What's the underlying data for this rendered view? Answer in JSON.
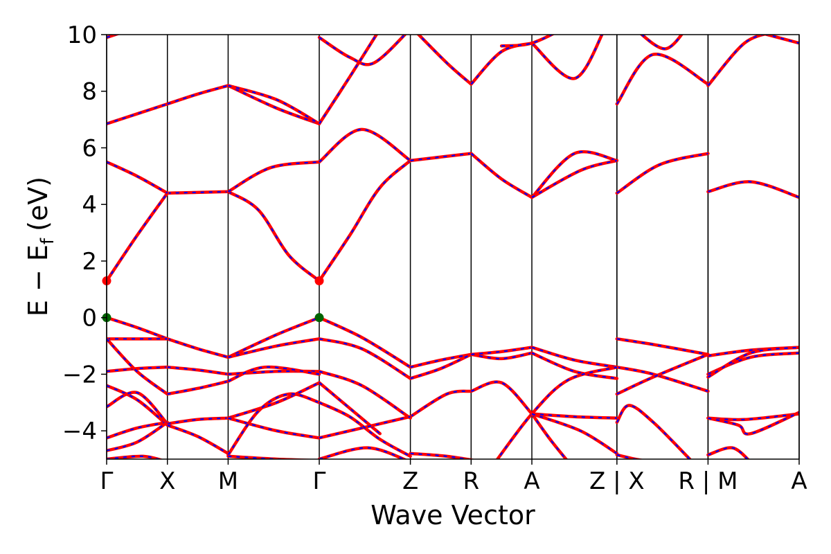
{
  "chart_data": {
    "type": "line",
    "title": "",
    "xlabel": "Wave Vector",
    "ylabel": "E − E",
    "ylabel_subscript": "f",
    "ylabel_unit": "(eV)",
    "ylim": [
      -5,
      10
    ],
    "yticks": [
      -4,
      -2,
      0,
      2,
      4,
      6,
      8,
      10
    ],
    "ytick_labels": [
      "−4",
      "−2",
      "0",
      "2",
      "4",
      "6",
      "8",
      "10"
    ],
    "grid": false,
    "legend": "none",
    "kpath": {
      "positions": [
        0,
        1,
        2,
        3.5,
        5,
        6,
        7,
        8.4,
        8.4,
        9.9,
        9.9,
        11.4
      ],
      "tick_labels": [
        "Γ",
        "X",
        "M",
        "Γ",
        "Z",
        "R",
        "A",
        "Z | X",
        "R | M",
        "A"
      ],
      "tick_positions": [
        0,
        1,
        2,
        3.5,
        5,
        6,
        7,
        8.4,
        9.9,
        11.4
      ],
      "break_positions": [
        8.4,
        9.9
      ],
      "xlim": [
        0,
        11.4
      ]
    },
    "colors": {
      "dft": "#ff0000",
      "wannier": "#0000ff",
      "cbm": "#ff0000",
      "vbm": "#006400"
    },
    "series": [
      {
        "segments": [
          {
            "x": [
              0,
              0.5,
              1
            ],
            "y": [
              1.3,
              2.9,
              4.4
            ]
          },
          {
            "x": [
              1,
              2
            ],
            "y": [
              4.4,
              4.45
            ]
          },
          {
            "x": [
              2,
              2.5,
              3.0,
              3.5
            ],
            "y": [
              4.45,
              3.8,
              2.2,
              1.3
            ]
          },
          {
            "x": [
              3.5,
              4.0,
              4.5,
              5.0
            ],
            "y": [
              1.3,
              2.9,
              4.6,
              5.55
            ]
          }
        ]
      },
      {
        "segments": [
          {
            "x": [
              0,
              0.5,
              1
            ],
            "y": [
              5.5,
              5.0,
              4.4
            ]
          },
          {
            "x": [
              2,
              2.7,
              3.5
            ],
            "y": [
              4.45,
              5.3,
              5.5
            ]
          },
          {
            "x": [
              3.5,
              4.2,
              5.0
            ],
            "y": [
              5.5,
              6.65,
              5.55
            ]
          },
          {
            "x": [
              5,
              6
            ],
            "y": [
              5.55,
              5.8
            ]
          },
          {
            "x": [
              6,
              6.5,
              7
            ],
            "y": [
              5.8,
              4.9,
              4.25
            ]
          },
          {
            "x": [
              7,
              7.7,
              8.4
            ],
            "y": [
              4.25,
              5.8,
              5.55
            ]
          },
          {
            "x": [
              7,
              7.8,
              8.4
            ],
            "y": [
              4.25,
              5.2,
              5.55
            ]
          },
          {
            "x": [
              8.4,
              9.1,
              9.9
            ],
            "y": [
              4.4,
              5.4,
              5.8
            ]
          },
          {
            "x": [
              9.9,
              10.6,
              11.4
            ],
            "y": [
              4.45,
              4.8,
              4.25
            ]
          }
        ]
      },
      {
        "segments": [
          {
            "x": [
              0,
              0.5,
              1
            ],
            "y": [
              6.85,
              7.2,
              7.55
            ]
          },
          {
            "x": [
              1,
              1.5,
              2
            ],
            "y": [
              7.55,
              7.9,
              8.2
            ]
          },
          {
            "x": [
              2,
              2.8,
              3.5
            ],
            "y": [
              8.2,
              7.4,
              6.85
            ]
          },
          {
            "x": [
              2,
              2.8,
              3.5
            ],
            "y": [
              8.2,
              7.7,
              6.85
            ]
          },
          {
            "x": [
              3.5,
              4.0,
              4.5
            ],
            "y": [
              6.85,
              8.5,
              10.2
            ]
          },
          {
            "x": [
              5,
              5.6,
              6
            ],
            "y": [
              10.3,
              9.0,
              8.25
            ]
          },
          {
            "x": [
              6,
              6.5,
              7
            ],
            "y": [
              8.25,
              9.4,
              9.7
            ]
          },
          {
            "x": [
              7,
              7.7,
              8.2
            ],
            "y": [
              9.7,
              8.45,
              10.2
            ]
          },
          {
            "x": [
              8.4,
              9.0,
              9.9
            ],
            "y": [
              7.55,
              9.3,
              8.25
            ]
          },
          {
            "x": [
              9.9,
              10.5,
              11.0
            ],
            "y": [
              8.2,
              9.7,
              10.1
            ]
          }
        ]
      },
      {
        "segments": [
          {
            "x": [
              0,
              0.6,
              1
            ],
            "y": [
              9.9,
              10.3,
              10.4
            ]
          },
          {
            "x": [
              3.5,
              4.0,
              4.4,
              5.0
            ],
            "y": [
              9.9,
              9.2,
              9.0,
              10.2
            ]
          },
          {
            "x": [
              6.5,
              7.0,
              7.6
            ],
            "y": [
              9.6,
              9.7,
              10.3
            ]
          },
          {
            "x": [
              8.7,
              9.2,
              9.6
            ],
            "y": [
              10.2,
              9.5,
              10.4
            ]
          },
          {
            "x": [
              10.7,
              11.4
            ],
            "y": [
              10.1,
              9.7
            ]
          }
        ]
      },
      {
        "segments": [
          {
            "x": [
              0,
              0.5,
              1
            ],
            "y": [
              0,
              -0.35,
              -0.75
            ]
          },
          {
            "x": [
              1,
              1.5,
              2
            ],
            "y": [
              -0.75,
              -1.1,
              -1.4
            ]
          },
          {
            "x": [
              2,
              2.8,
              3.5
            ],
            "y": [
              -1.4,
              -0.6,
              0
            ]
          },
          {
            "x": [
              3.5,
              4.2,
              5.0
            ],
            "y": [
              0,
              -0.7,
              -1.75
            ]
          },
          {
            "x": [
              5,
              5.5,
              6
            ],
            "y": [
              -1.75,
              -1.5,
              -1.3
            ]
          },
          {
            "x": [
              6,
              6.5,
              7
            ],
            "y": [
              -1.3,
              -1.45,
              -1.25
            ]
          },
          {
            "x": [
              7,
              7.7,
              8.4
            ],
            "y": [
              -1.25,
              -1.9,
              -2.15
            ]
          },
          {
            "x": [
              8.4,
              9.0,
              9.9
            ],
            "y": [
              -0.75,
              -0.95,
              -1.3
            ]
          },
          {
            "x": [
              9.9,
              10.6,
              11.4
            ],
            "y": [
              -1.35,
              -1.15,
              -1.05
            ]
          }
        ]
      },
      {
        "segments": [
          {
            "x": [
              0,
              1
            ],
            "y": [
              -0.75,
              -0.75
            ]
          },
          {
            "x": [
              2,
              2.8,
              3.5
            ],
            "y": [
              -1.4,
              -1.0,
              -0.75
            ]
          },
          {
            "x": [
              3.5,
              4.2,
              5.0
            ],
            "y": [
              -0.75,
              -1.1,
              -2.15
            ]
          },
          {
            "x": [
              5,
              5.5,
              6
            ],
            "y": [
              -2.15,
              -1.8,
              -1.3
            ]
          },
          {
            "x": [
              6,
              6.5,
              7
            ],
            "y": [
              -1.3,
              -1.2,
              -1.05
            ]
          },
          {
            "x": [
              7,
              7.7,
              8.4
            ],
            "y": [
              -1.05,
              -1.5,
              -1.75
            ]
          },
          {
            "x": [
              8.4,
              9.0,
              9.9
            ],
            "y": [
              -1.75,
              -2.0,
              -2.6
            ]
          },
          {
            "x": [
              9.9,
              10.6,
              11.4
            ],
            "y": [
              -2.0,
              -1.4,
              -1.25
            ]
          }
        ]
      },
      {
        "segments": [
          {
            "x": [
              0,
              0.5,
              1
            ],
            "y": [
              -1.9,
              -1.8,
              -1.75
            ]
          },
          {
            "x": [
              1,
              1.5,
              2
            ],
            "y": [
              -1.75,
              -1.85,
              -2.0
            ]
          },
          {
            "x": [
              2,
              2.8,
              3.5
            ],
            "y": [
              -2.0,
              -1.9,
              -1.9
            ]
          },
          {
            "x": [
              0,
              0.5,
              1
            ],
            "y": [
              -0.75,
              -1.9,
              -2.7
            ]
          },
          {
            "x": [
              1,
              1.5,
              2
            ],
            "y": [
              -2.7,
              -2.5,
              -2.25
            ]
          },
          {
            "x": [
              2,
              2.6,
              3.5
            ],
            "y": [
              -2.25,
              -1.75,
              -2.0
            ]
          },
          {
            "x": [
              3.5,
              4.2,
              5.0
            ],
            "y": [
              -1.9,
              -2.4,
              -3.55
            ]
          },
          {
            "x": [
              5,
              5.6,
              6
            ],
            "y": [
              -3.5,
              -2.7,
              -2.6
            ]
          },
          {
            "x": [
              6,
              6.5,
              7
            ],
            "y": [
              -2.6,
              -2.3,
              -3.4
            ]
          },
          {
            "x": [
              8.4,
              9.0,
              9.9
            ],
            "y": [
              -2.7,
              -2.1,
              -1.3
            ]
          },
          {
            "x": [
              9.9,
              10.6,
              11.4
            ],
            "y": [
              -2.1,
              -1.25,
              -1.05
            ]
          }
        ]
      },
      {
        "segments": [
          {
            "x": [
              0,
              0.5,
              1
            ],
            "y": [
              -2.4,
              -2.9,
              -3.8
            ]
          },
          {
            "x": [
              0,
              0.5,
              1
            ],
            "y": [
              -3.15,
              -2.65,
              -3.75
            ]
          },
          {
            "x": [
              0,
              0.5,
              1
            ],
            "y": [
              -4.25,
              -3.9,
              -3.7
            ]
          },
          {
            "x": [
              0,
              0.5,
              1
            ],
            "y": [
              -4.7,
              -4.4,
              -3.7
            ]
          },
          {
            "x": [
              1,
              1.5,
              2
            ],
            "y": [
              -3.75,
              -3.6,
              -3.55
            ]
          },
          {
            "x": [
              1,
              1.5,
              2
            ],
            "y": [
              -3.8,
              -4.2,
              -4.8
            ]
          },
          {
            "x": [
              2,
              2.8,
              3.5
            ],
            "y": [
              -3.55,
              -3.0,
              -2.3
            ]
          },
          {
            "x": [
              2,
              2.8,
              3.5
            ],
            "y": [
              -3.55,
              -4.0,
              -4.25
            ]
          },
          {
            "x": [
              2,
              2.5,
              3.0,
              3.5
            ],
            "y": [
              -4.85,
              -3.3,
              -2.7,
              -3.0
            ]
          },
          {
            "x": [
              3.5,
              4.0,
              4.5
            ],
            "y": [
              -2.3,
              -3.2,
              -4.1
            ]
          },
          {
            "x": [
              3.5,
              4.2,
              5.0
            ],
            "y": [
              -4.25,
              -3.9,
              -3.5
            ]
          },
          {
            "x": [
              3.5,
              4.0,
              4.5,
              5.0
            ],
            "y": [
              -3.0,
              -3.5,
              -4.3,
              -4.9
            ]
          },
          {
            "x": [
              7,
              7.7,
              8.4
            ],
            "y": [
              -3.4,
              -3.5,
              -3.55
            ]
          },
          {
            "x": [
              6.4,
              7.0,
              7.6,
              8.4
            ],
            "y": [
              -5.1,
              -3.4,
              -2.2,
              -1.75
            ]
          },
          {
            "x": [
              7,
              7.3,
              7.6
            ],
            "y": [
              -3.4,
              -4.3,
              -5.1
            ]
          },
          {
            "x": [
              7,
              7.8,
              8.4
            ],
            "y": [
              -3.4,
              -4.0,
              -4.8
            ]
          },
          {
            "x": [
              8.4,
              8.6,
              9.0,
              9.6
            ],
            "y": [
              -3.7,
              -3.1,
              -3.7,
              -5.0
            ]
          },
          {
            "x": [
              9.9,
              10.5,
              11.4
            ],
            "y": [
              -3.55,
              -3.6,
              -3.4
            ]
          },
          {
            "x": [
              9.9,
              10.4,
              10.6,
              11.4
            ],
            "y": [
              -3.55,
              -3.8,
              -4.1,
              -3.35
            ]
          },
          {
            "x": [
              9.9,
              10.3,
              10.6
            ],
            "y": [
              -4.85,
              -4.6,
              -5.1
            ]
          }
        ]
      },
      {
        "segments": [
          {
            "x": [
              0,
              0.6,
              1
            ],
            "y": [
              -5.0,
              -4.9,
              -5.1
            ]
          },
          {
            "x": [
              2,
              2.8,
              3.5
            ],
            "y": [
              -4.9,
              -5.0,
              -5.05
            ]
          },
          {
            "x": [
              3.5,
              4.3,
              5.0
            ],
            "y": [
              -5.0,
              -4.6,
              -5.1
            ]
          },
          {
            "x": [
              5,
              5.6,
              6.2
            ],
            "y": [
              -4.8,
              -4.9,
              -5.1
            ]
          },
          {
            "x": [
              8.4,
              8.7,
              9.0
            ],
            "y": [
              -4.85,
              -5.0,
              -5.1
            ]
          }
        ]
      }
    ],
    "markers": [
      {
        "x": 0,
        "y": 1.3,
        "kind": "cbm"
      },
      {
        "x": 3.5,
        "y": 1.3,
        "kind": "cbm"
      },
      {
        "x": 0,
        "y": 0,
        "kind": "vbm"
      },
      {
        "x": 3.5,
        "y": 0,
        "kind": "vbm"
      }
    ]
  }
}
